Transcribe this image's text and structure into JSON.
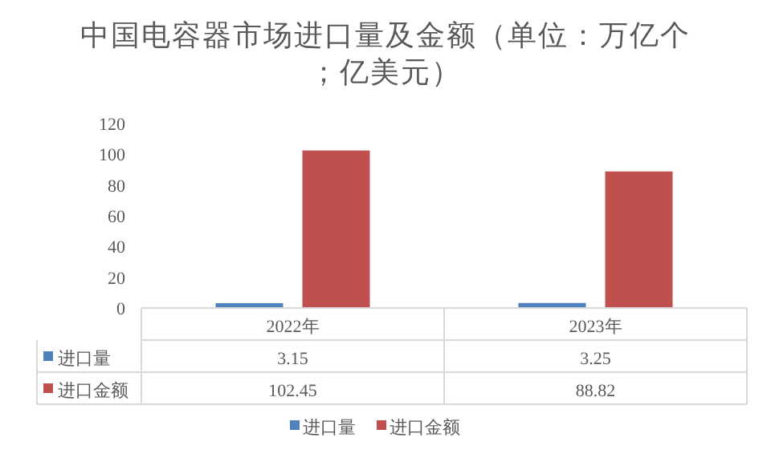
{
  "chart_data": {
    "type": "bar",
    "title": "中国电容器市场进口量及金额（单位：万亿个；亿美元）",
    "categories": [
      "2022年",
      "2023年"
    ],
    "series": [
      {
        "name": "进口量",
        "color": "#4f81bd",
        "values": [
          3.15,
          3.25
        ]
      },
      {
        "name": "进口金额",
        "color": "#c0504d",
        "values": [
          102.45,
          88.82
        ]
      }
    ],
    "ylim": [
      0,
      120
    ],
    "yticks": [
      0,
      20,
      40,
      60,
      80,
      100,
      120
    ],
    "grid": false,
    "legend": "bottom",
    "data_labels": true
  }
}
